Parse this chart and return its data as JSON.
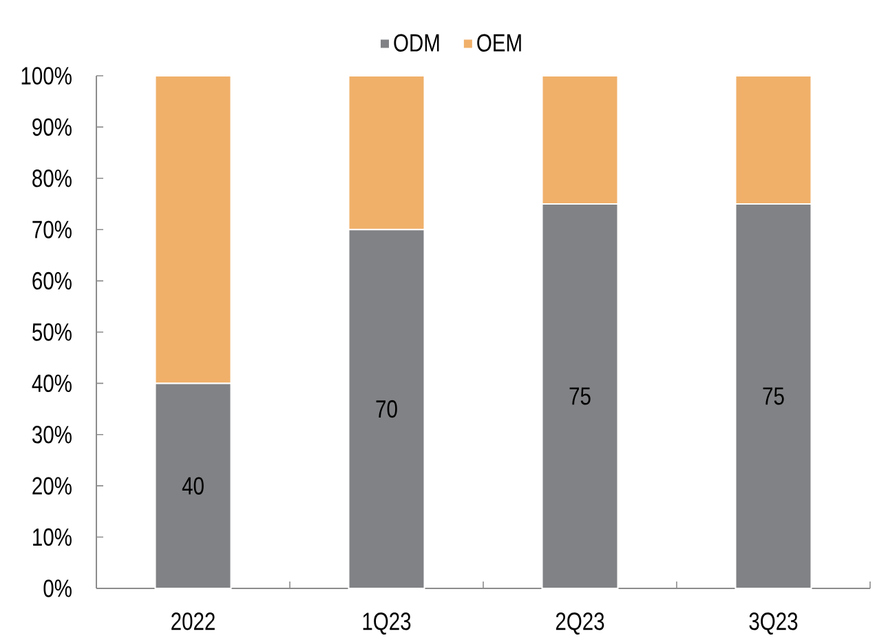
{
  "chart_data": {
    "type": "bar",
    "stacked": true,
    "legend": "top",
    "categories": [
      "2022",
      "1Q23",
      "2Q23",
      "3Q23"
    ],
    "series": [
      {
        "name": "ODM",
        "color": "#808285",
        "values": [
          40,
          70,
          75,
          75
        ],
        "value_labels": [
          "40",
          "70",
          "75",
          "75"
        ]
      },
      {
        "name": "OEM",
        "color": "#f0b06a",
        "values": [
          60,
          30,
          25,
          25
        ]
      }
    ],
    "ylim": [
      0,
      100
    ],
    "yticks": [
      {
        "value": 0,
        "label": "0%"
      },
      {
        "value": 10,
        "label": "10%"
      },
      {
        "value": 20,
        "label": "20%"
      },
      {
        "value": 30,
        "label": "30%"
      },
      {
        "value": 40,
        "label": "40%"
      },
      {
        "value": 50,
        "label": "50%"
      },
      {
        "value": 60,
        "label": "60%"
      },
      {
        "value": 70,
        "label": "70%"
      },
      {
        "value": 80,
        "label": "80%"
      },
      {
        "value": 90,
        "label": "90%"
      },
      {
        "value": 100,
        "label": "100%"
      }
    ]
  }
}
